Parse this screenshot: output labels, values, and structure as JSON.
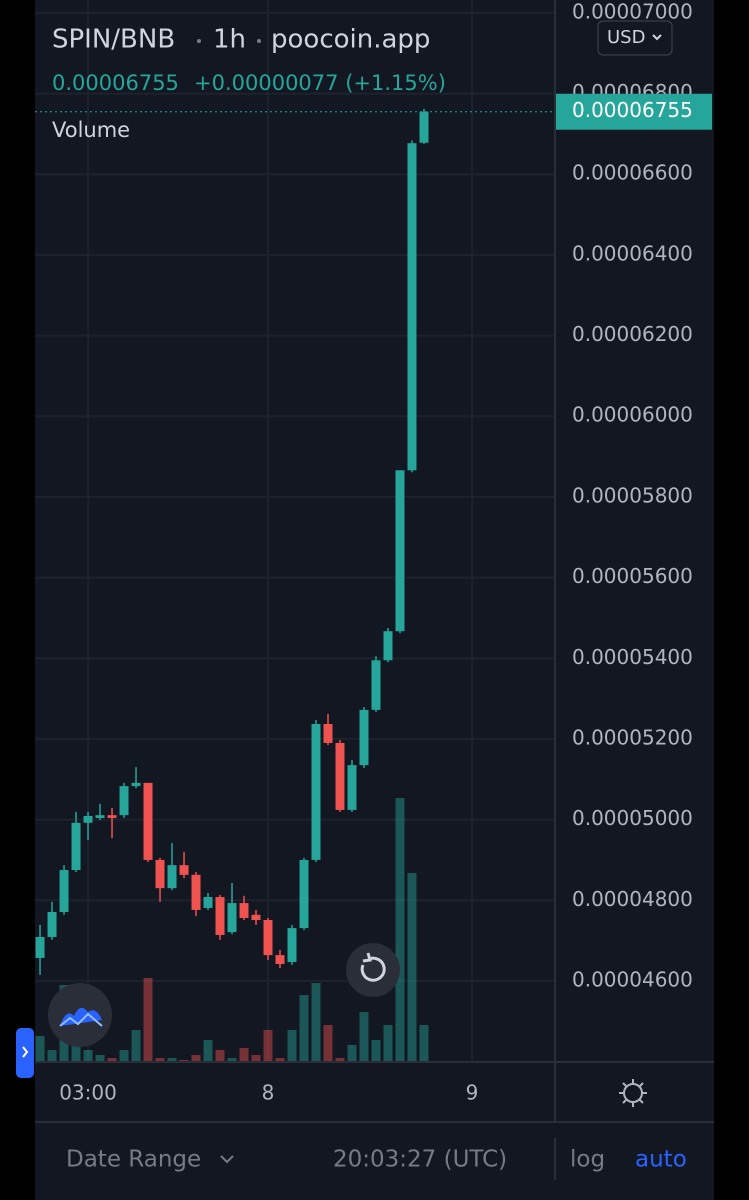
{
  "chart_data": {
    "type": "candlestick",
    "title": "SPIN/BNB",
    "interval": "1h",
    "source": "poocoin.app",
    "last_price": 6.755e-05,
    "change_label": "+0.00000077 (+1.15%)",
    "volume_label": "Volume",
    "currency": "USD",
    "up_color": "#26a69a",
    "down_color": "#ef5350",
    "open": [
      4.657e-05,
      4.709e-05,
      4.771e-05,
      4.875e-05,
      4.992e-05,
      5.004e-05,
      5.011e-05,
      5.011e-05,
      5.083e-05,
      5.091e-05,
      4.9e-05,
      4.83e-05,
      4.887e-05,
      4.863e-05,
      4.781e-05,
      4.808e-05,
      4.721e-05,
      4.793e-05,
      4.764e-05,
      4.751e-05,
      4.664e-05,
      4.647e-05,
      4.731e-05,
      4.9e-05,
      5.237e-05,
      5.19e-05,
      5.024e-05,
      5.135e-05,
      5.272e-05,
      5.395e-05,
      5.467e-05,
      5.866e-05,
      6.678e-05
    ],
    "high": [
      4.739e-05,
      4.796e-05,
      4.887e-05,
      5.019e-05,
      5.019e-05,
      5.039e-05,
      5.029e-05,
      5.091e-05,
      5.13e-05,
      5.091e-05,
      4.905e-05,
      4.942e-05,
      4.92e-05,
      4.87e-05,
      4.818e-05,
      4.813e-05,
      4.843e-05,
      4.811e-05,
      4.776e-05,
      4.756e-05,
      4.677e-05,
      4.739e-05,
      4.905e-05,
      5.247e-05,
      5.262e-05,
      5.197e-05,
      5.148e-05,
      5.279e-05,
      5.405e-05,
      5.475e-05,
      5.866e-05,
      6.684e-05,
      6.762e-05
    ],
    "low": [
      4.615e-05,
      4.702e-05,
      4.764e-05,
      4.87e-05,
      4.949e-05,
      4.999e-05,
      4.954e-05,
      5.004e-05,
      5.078e-05,
      4.895e-05,
      4.796e-05,
      4.825e-05,
      4.855e-05,
      4.761e-05,
      4.776e-05,
      4.702e-05,
      4.716e-05,
      4.751e-05,
      4.739e-05,
      4.652e-05,
      4.632e-05,
      4.64e-05,
      4.726e-05,
      4.895e-05,
      5.185e-05,
      5.019e-05,
      5.019e-05,
      5.128e-05,
      5.267e-05,
      5.39e-05,
      5.462e-05,
      5.861e-05,
      6.675e-05
    ],
    "close": [
      4.709e-05,
      4.771e-05,
      4.875e-05,
      4.992e-05,
      5.009e-05,
      5.011e-05,
      5.004e-05,
      5.083e-05,
      5.091e-05,
      4.9e-05,
      4.83e-05,
      4.887e-05,
      4.863e-05,
      4.776e-05,
      4.808e-05,
      4.714e-05,
      4.793e-05,
      4.756e-05,
      4.751e-05,
      4.664e-05,
      4.642e-05,
      4.731e-05,
      4.9e-05,
      5.237e-05,
      5.19e-05,
      5.024e-05,
      5.135e-05,
      5.272e-05,
      5.395e-05,
      5.467e-05,
      5.866e-05,
      6.677e-05,
      6.755e-05
    ],
    "volume": [
      26,
      12,
      77,
      17,
      12,
      7,
      4,
      12,
      32,
      84,
      4,
      4,
      2,
      7,
      22,
      12,
      4,
      14,
      7,
      32,
      4,
      32,
      67,
      79,
      37,
      4,
      17,
      50,
      22,
      37,
      264,
      189,
      37
    ],
    "xlim": [
      -0.42,
      42.92
    ],
    "xticks": [
      {
        "value": 4,
        "label": "03:00"
      },
      {
        "value": 19,
        "label": "8"
      },
      {
        "value": 36,
        "label": "9"
      }
    ],
    "ylim": [
      4.399e-05,
      7.032e-05
    ],
    "yticks": [
      {
        "value": 4.6e-05,
        "label": "0.00004600"
      },
      {
        "value": 4.8e-05,
        "label": "0.00004800"
      },
      {
        "value": 5e-05,
        "label": "0.00005000"
      },
      {
        "value": 5.2e-05,
        "label": "0.00005200"
      },
      {
        "value": 5.4e-05,
        "label": "0.00005400"
      },
      {
        "value": 5.6e-05,
        "label": "0.00005600"
      },
      {
        "value": 5.8e-05,
        "label": "0.00005800"
      },
      {
        "value": 6e-05,
        "label": "0.00006000"
      },
      {
        "value": 6.2e-05,
        "label": "0.00006200"
      },
      {
        "value": 6.4e-05,
        "label": "0.00006400"
      },
      {
        "value": 6.6e-05,
        "label": "0.00006600"
      },
      {
        "value": 6.8e-05,
        "label": "0.00006800"
      },
      {
        "value": 7e-05,
        "label": "0.00007000"
      }
    ],
    "grid": true
  },
  "footer": {
    "date_range": "Date Range",
    "time": "20:03:27 (UTC)",
    "log": "log",
    "auto": "auto"
  }
}
